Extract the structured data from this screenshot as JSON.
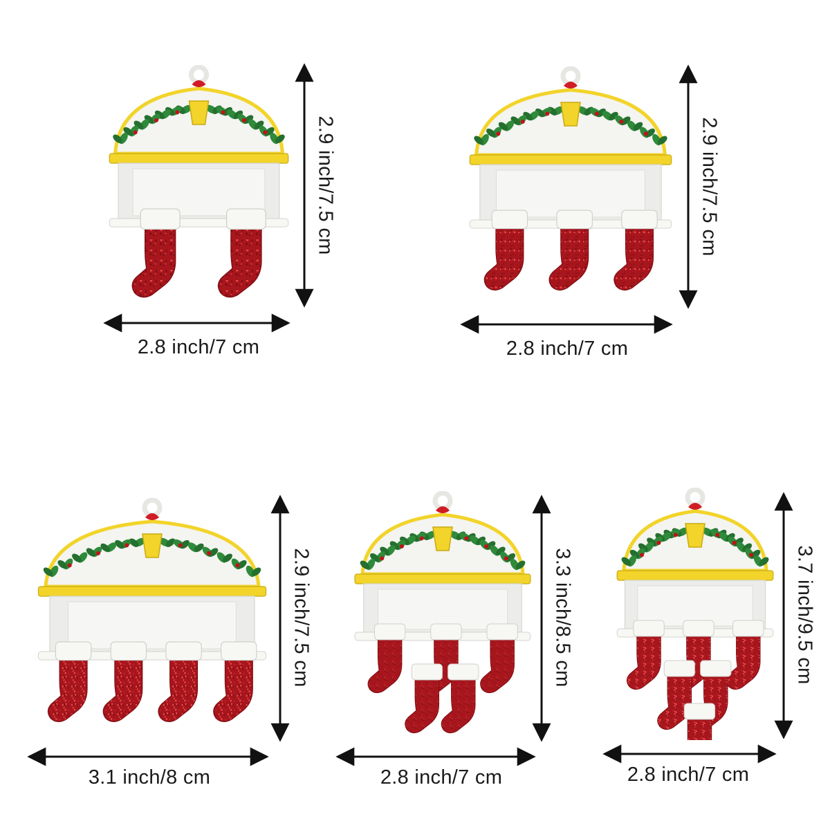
{
  "colors": {
    "stocking_red": "#a8161d",
    "stocking_dark": "#7a0d12",
    "glitter": "#ff5a5a",
    "cuff_white": "#f7f7f4",
    "panel_white": "#ececea",
    "trim_yellow": "#f2d42a",
    "leaf_green": "#2f8a3a",
    "berry_red": "#c1121a",
    "bow_red": "#d01c24",
    "arrow": "#111111"
  },
  "items": [
    {
      "name": "ornament-2-stockings",
      "stockings": 2,
      "stacked": false,
      "width_label": "2.8 inch/7 cm",
      "height_label": "2.9 inch/7.5 cm"
    },
    {
      "name": "ornament-3-stockings",
      "stockings": 3,
      "stacked": false,
      "width_label": "2.8 inch/7 cm",
      "height_label": "2.9 inch/7.5 cm"
    },
    {
      "name": "ornament-4-stockings",
      "stockings": 4,
      "stacked": false,
      "width_label": "3.1 inch/8 cm",
      "height_label": "2.9 inch/7.5 cm"
    },
    {
      "name": "ornament-5-stockings",
      "stockings": 5,
      "stacked": true,
      "width_label": "2.8 inch/7 cm",
      "height_label": "3.3 inch/8.5 cm"
    },
    {
      "name": "ornament-6-stockings",
      "stockings": 6,
      "stacked": true,
      "width_label": "2.8 inch/7 cm",
      "height_label": "3.7 inch/9.5 cm"
    }
  ]
}
